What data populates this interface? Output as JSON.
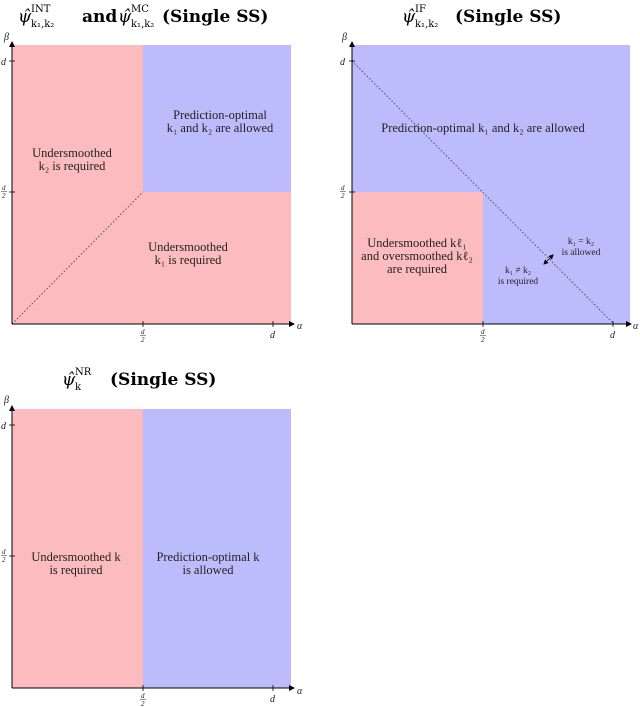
{
  "colors": {
    "red_region": "#fcbcbf",
    "blue_region": "#bcbcfc",
    "axis": "#000000"
  },
  "panels": [
    {
      "title": {
        "estimator_a": "ψ̂",
        "sup_a": "INT",
        "sub_a": "k₁,k₂",
        "connector": "and",
        "estimator_b": "ψ̂",
        "sup_b": "MC",
        "sub_b": "k₁,k₂",
        "suffix": "(Single SS)"
      },
      "axis": {
        "x": "α",
        "y": "β",
        "tick_half_num": "d",
        "tick_half_den": "2",
        "tick_full": "d"
      },
      "regions": {
        "left_line1": "Undersmoothed",
        "left_line2": "k₂ is required",
        "top_right_line1": "Prediction-optimal",
        "top_right_line2": "k₁ and k₂ are allowed",
        "bottom_right_line1": "Undersmoothed",
        "bottom_right_line2": "k₁ is required"
      }
    },
    {
      "title": {
        "estimator": "ψ̂",
        "sup": "IF",
        "sub": "k₁,k₂",
        "suffix": "(Single SS)"
      },
      "axis": {
        "x": "α",
        "y": "β",
        "tick_half_num": "d",
        "tick_half_den": "2",
        "tick_full": "d"
      },
      "regions": {
        "top_line1": "Prediction-optimal k₁ and k₂ are allowed",
        "red_line1": "Undersmoothed kℓ₁",
        "red_line2": "and oversmoothed kℓ₂",
        "red_line3": "are required",
        "eq_line1": "k₁ = k₂",
        "eq_line2": "is allowed",
        "neq_line1": "k₁ ≠ k₂",
        "neq_line2": "is required"
      }
    },
    {
      "title": {
        "estimator": "ψ̂",
        "sup": "NR",
        "sub": "k",
        "suffix": "(Single SS)"
      },
      "axis": {
        "x": "α",
        "y": "β",
        "tick_half_num": "d",
        "tick_half_den": "2",
        "tick_full": "d"
      },
      "regions": {
        "left_line1": "Undersmoothed k",
        "left_line2": "is required",
        "right_line1": "Prediction-optimal k",
        "right_line2": "is allowed"
      }
    }
  ]
}
